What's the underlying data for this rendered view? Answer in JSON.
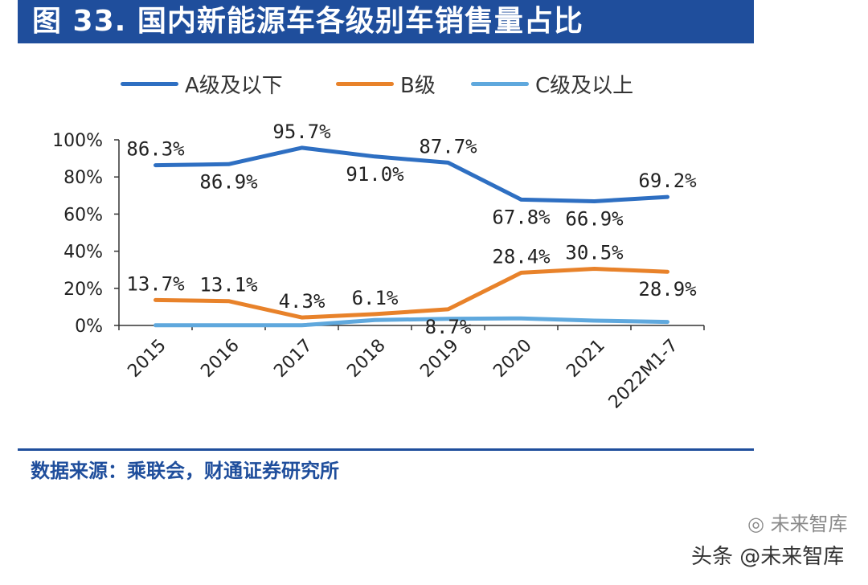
{
  "title": "图 33. 国内新能源车各级别车销售量占比",
  "source": "数据来源：乘联会，财通证券研究所",
  "watermark": {
    "account_icon": "wechat-icon",
    "account_name": "未来智库",
    "text": "头条 @未来智库"
  },
  "colors": {
    "brand": "#1f4e9c",
    "series_a": "#2e6fc2",
    "series_b": "#e8822a",
    "series_c": "#5fa8dd",
    "axis": "#333333"
  },
  "chart_data": {
    "type": "line",
    "title": "",
    "xlabel": "",
    "ylabel": "",
    "categories": [
      "2015",
      "2016",
      "2017",
      "2018",
      "2019",
      "2020",
      "2021",
      "2022M1-7"
    ],
    "ylim": [
      0,
      100
    ],
    "yticks": [
      "0%",
      "20%",
      "40%",
      "60%",
      "80%",
      "100%"
    ],
    "grid": false,
    "legend_position": "top",
    "series": [
      {
        "name": "A级及以下",
        "values": [
          86.3,
          86.9,
          95.7,
          91.0,
          87.7,
          67.8,
          66.9,
          69.2
        ],
        "labels": [
          "86.3%",
          "86.9%",
          "95.7%",
          "91.0%",
          "87.7%",
          "67.8%",
          "66.9%",
          "69.2%"
        ],
        "label_position": [
          "above",
          "below",
          "above",
          "below",
          "above",
          "below",
          "below",
          "above"
        ]
      },
      {
        "name": "B级",
        "values": [
          13.7,
          13.1,
          4.3,
          6.1,
          8.7,
          28.4,
          30.5,
          28.9
        ],
        "labels": [
          "13.7%",
          "13.1%",
          "4.3%",
          "6.1%",
          "8.7%",
          "28.4%",
          "30.5%",
          "28.9%"
        ],
        "label_position": [
          "above",
          "above",
          "above",
          "above",
          "below",
          "above",
          "above",
          "below"
        ]
      },
      {
        "name": "C级及以上",
        "values": [
          0.1,
          0.1,
          0.1,
          2.9,
          3.6,
          3.8,
          2.6,
          1.9
        ],
        "labels": [],
        "label_position": []
      }
    ]
  }
}
